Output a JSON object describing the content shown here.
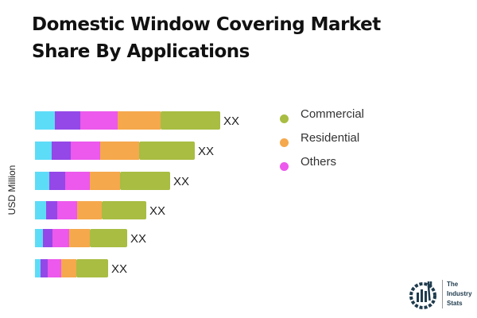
{
  "title_line1": "Domestic Window Covering Market",
  "title_line2": "Share By Applications",
  "chart_data": {
    "type": "bar",
    "orientation": "horizontal",
    "stacked": true,
    "title": "Domestic Window Covering Market Share By Applications",
    "ylabel": "USD Million",
    "grid": false,
    "legend_position": "right",
    "categories": [
      "",
      "",
      "",
      "",
      "",
      ""
    ],
    "data_labels": [
      "XX",
      "XX",
      "XX",
      "XX",
      "XX",
      "XX"
    ],
    "series": [
      {
        "color": "#5ddcf7",
        "values": [
          25,
          21,
          18,
          14,
          10,
          7
        ]
      },
      {
        "color": "#9448e8",
        "values": [
          32,
          24,
          20,
          14,
          12,
          9
        ]
      },
      {
        "name": "Others",
        "color": "#ec59ec",
        "values": [
          47,
          37,
          31,
          25,
          21,
          17
        ]
      },
      {
        "name": "Residential",
        "color": "#f5a84c",
        "values": [
          54,
          49,
          38,
          31,
          26,
          19
        ]
      },
      {
        "name": "Commercial",
        "color": "#a8bd42",
        "values": [
          75,
          70,
          63,
          56,
          47,
          40
        ]
      }
    ]
  },
  "legend": [
    {
      "label": "Commercial",
      "color": "#a8bd42"
    },
    {
      "label": "Residential",
      "color": "#f5a84c"
    },
    {
      "label": "Others",
      "color": "#ec59ec"
    }
  ],
  "logo": {
    "line1": "The",
    "line2": "Industry",
    "line3": "Stats"
  }
}
